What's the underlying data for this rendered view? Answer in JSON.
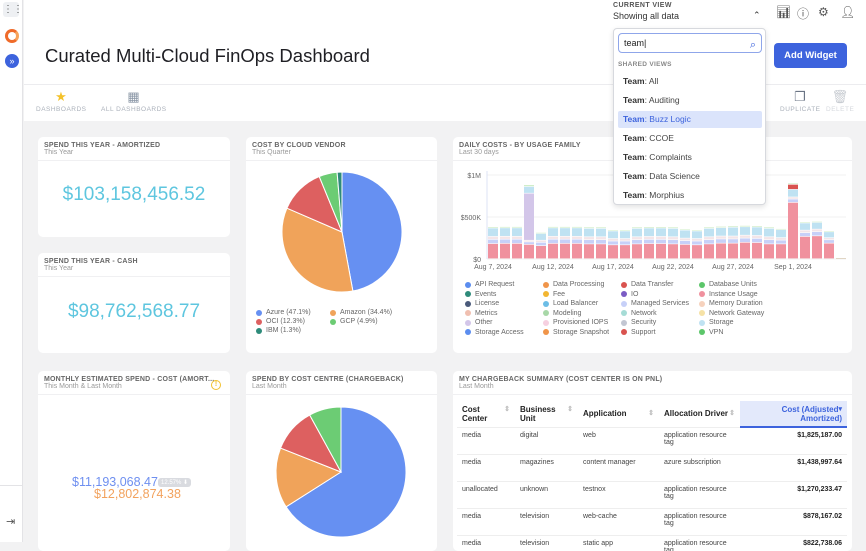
{
  "header": {
    "title": "Curated Multi-Cloud FinOps Dashboard",
    "current_view_label": "CURRENT VIEW",
    "current_view_value": "Showing all data",
    "add_widget": "Add Widget"
  },
  "toolbar": {
    "dashboards": "DASHBOARDS",
    "all_dashboards": "ALL DASHBOARDS",
    "duplicate": "DUPLICATE",
    "delete": "DELETE"
  },
  "view_dropdown": {
    "search_value": "team",
    "section": "SHARED VIEWS",
    "prefix": "Team",
    "items": [
      "All",
      "Auditing",
      "Buzz Logic",
      "CCOE",
      "Complaints",
      "Data Science",
      "Morphius"
    ],
    "selected": "Buzz Logic"
  },
  "cards": {
    "amortized": {
      "title": "SPEND THIS YEAR - AMORTIZED",
      "subtitle": "This Year",
      "value": "$103,158,456.52"
    },
    "cash": {
      "title": "SPEND THIS YEAR - CASH",
      "subtitle": "This Year",
      "value": "$98,762,568.77"
    },
    "monthly": {
      "title": "MONTHLY ESTIMATED SPEND - COST (AMORT...",
      "subtitle": "This Month & Last Month",
      "current": "$11,193,068.47",
      "previous": "$12,802,874.38",
      "change": "12.57%"
    },
    "vendor": {
      "title": "COST BY CLOUD VENDOR",
      "subtitle": "This Quarter"
    },
    "daily": {
      "title": "DAILY COSTS - BY USAGE FAMILY",
      "subtitle": "Last 30 days"
    },
    "costcentre": {
      "title": "SPEND BY COST CENTRE (CHARGEBACK)",
      "subtitle": "Last Month"
    },
    "chargeback": {
      "title": "MY CHARGEBACK SUMMARY (COST CENTER IS ON PNL)",
      "subtitle": "Last Month",
      "columns": [
        "Cost Center",
        "Business Unit",
        "Application",
        "Allocation Driver",
        "Cost (Adjusted Amortized)"
      ],
      "rows": [
        [
          "media",
          "digital",
          "web",
          "application resource tag",
          "$1,825,187.00"
        ],
        [
          "media",
          "magazines",
          "content manager",
          "azure subscription",
          "$1,438,997.64"
        ],
        [
          "unallocated",
          "unknown",
          "testnox",
          "application resource tag",
          "$1,270,233.47"
        ],
        [
          "media",
          "television",
          "web-cache",
          "application resource tag",
          "$878,167.02"
        ],
        [
          "media",
          "television",
          "static app",
          "application resource tag",
          "$822,738.06"
        ]
      ]
    }
  },
  "chart_data": [
    {
      "type": "pie",
      "slices": [
        {
          "label": "Azure (47.1%)",
          "value": 47.1,
          "color": "#6690f2"
        },
        {
          "label": "Amazon (34.4%)",
          "value": 34.4,
          "color": "#f0a35a"
        },
        {
          "label": "OCI (12.3%)",
          "value": 12.3,
          "color": "#dd6060"
        },
        {
          "label": "GCP (4.9%)",
          "value": 4.9,
          "color": "#6ccc74"
        },
        {
          "label": "IBM (1.3%)",
          "value": 1.3,
          "color": "#2e8b7a"
        }
      ]
    },
    {
      "type": "bar",
      "stacked": true,
      "ylim": [
        0,
        1000000
      ],
      "yticks": [
        "$0",
        "$500K",
        "$1M"
      ],
      "ytick_values": [
        0,
        500000,
        1000000
      ],
      "xtick_labels": [
        "Aug 7, 2024",
        "Aug 12, 2024",
        "Aug 17, 2024",
        "Aug 22, 2024",
        "Aug 27, 2024",
        "Sep 1, 2024"
      ],
      "xtick_index": [
        0,
        5,
        10,
        15,
        20,
        25
      ],
      "series": [
        {
          "name": "Instance Usage",
          "color": "#f0919e",
          "values": [
            180000,
            182000,
            182000,
            170000,
            155000,
            182000,
            182000,
            182000,
            176000,
            176000,
            165000,
            165000,
            176000,
            180000,
            180000,
            176000,
            170000,
            165000,
            176000,
            185000,
            185000,
            195000,
            192000,
            176000,
            176000,
            670000,
            265000,
            272000,
            185000,
            8000
          ]
        },
        {
          "name": "Managed Services",
          "color": "#c7d0f8",
          "values": [
            50000,
            50000,
            50000,
            30000,
            40000,
            50000,
            50000,
            50000,
            50000,
            50000,
            45000,
            45000,
            50000,
            50000,
            50000,
            50000,
            45000,
            45000,
            50000,
            50000,
            50000,
            50000,
            50000,
            50000,
            45000,
            40000,
            45000,
            50000,
            40000,
            0
          ]
        },
        {
          "name": "Memory Duration",
          "color": "#f3e5e8",
          "values": [
            35000,
            35000,
            35000,
            20000,
            25000,
            35000,
            35000,
            35000,
            35000,
            35000,
            30000,
            30000,
            35000,
            35000,
            35000,
            35000,
            30000,
            30000,
            35000,
            35000,
            35000,
            35000,
            35000,
            35000,
            30000,
            25000,
            30000,
            30000,
            25000,
            0
          ]
        },
        {
          "name": "Other",
          "color": "#d3c6e9",
          "values": [
            0,
            0,
            0,
            560000,
            0,
            0,
            0,
            0,
            0,
            0,
            0,
            0,
            0,
            0,
            0,
            0,
            0,
            0,
            0,
            0,
            0,
            0,
            0,
            0,
            0,
            0,
            0,
            0,
            0,
            0
          ]
        },
        {
          "name": "Storage",
          "color": "#bfe2f2",
          "values": [
            100000,
            100000,
            100000,
            80000,
            80000,
            100000,
            100000,
            100000,
            100000,
            100000,
            90000,
            90000,
            100000,
            100000,
            100000,
            100000,
            95000,
            90000,
            100000,
            100000,
            105000,
            100000,
            100000,
            100000,
            95000,
            90000,
            85000,
            80000,
            70000,
            0
          ]
        },
        {
          "name": "Data Transfer",
          "color": "#d9534f",
          "values": [
            0,
            0,
            0,
            0,
            0,
            0,
            0,
            0,
            0,
            0,
            0,
            0,
            0,
            0,
            0,
            0,
            0,
            0,
            0,
            0,
            0,
            0,
            0,
            0,
            0,
            60000,
            0,
            0,
            0,
            0
          ]
        },
        {
          "name": "Database Units",
          "color": "#cdecc4",
          "values": [
            15000,
            15000,
            15000,
            20000,
            12000,
            15000,
            15000,
            15000,
            15000,
            15000,
            12000,
            12000,
            15000,
            15000,
            15000,
            15000,
            12000,
            12000,
            15000,
            15000,
            15000,
            15000,
            15000,
            15000,
            12000,
            15000,
            12000,
            12000,
            10000,
            2000
          ]
        }
      ],
      "legend": [
        [
          "API Request",
          "#5b8def"
        ],
        [
          "Data Processing",
          "#f0954a"
        ],
        [
          "Data Transfer",
          "#d9534f"
        ],
        [
          "Database Units",
          "#5cc66a"
        ],
        [
          "Events",
          "#2e8b7a"
        ],
        [
          "Fee",
          "#f2b632"
        ],
        [
          "IO",
          "#7b5cc4"
        ],
        [
          "Instance Usage",
          "#f0919e"
        ],
        [
          "License",
          "#4a5a7a"
        ],
        [
          "Load Balancer",
          "#6cbde6"
        ],
        [
          "Managed Services",
          "#c7d0f8"
        ],
        [
          "Memory Duration",
          "#f6d2bd"
        ],
        [
          "Metrics",
          "#f0bfb0"
        ],
        [
          "Modeling",
          "#a8d8a8"
        ],
        [
          "Network",
          "#a6dcd6"
        ],
        [
          "Network Gateway",
          "#f6e2a6"
        ],
        [
          "Other",
          "#d3c6e9"
        ],
        [
          "Provisioned IOPS",
          "#f6d0e0"
        ],
        [
          "Security",
          "#c2c6d2"
        ],
        [
          "Storage",
          "#bfe2f2"
        ],
        [
          "Storage Access",
          "#5b8def"
        ],
        [
          "Storage Snapshot",
          "#f0954a"
        ],
        [
          "Support",
          "#d9534f"
        ],
        [
          "VPN",
          "#5cc66a"
        ]
      ]
    },
    {
      "type": "pie",
      "slices": [
        {
          "value": 66,
          "color": "#6690f2"
        },
        {
          "value": 15,
          "color": "#f0a35a"
        },
        {
          "value": 11,
          "color": "#dd6060"
        },
        {
          "value": 8,
          "color": "#6ccc74"
        }
      ]
    }
  ]
}
